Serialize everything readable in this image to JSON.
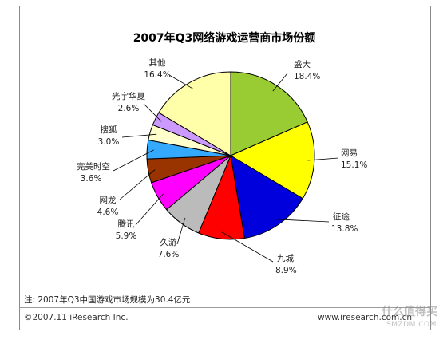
{
  "chart_data": {
    "type": "pie",
    "title": "2007年Q3网络游戏运营商市场份额",
    "slices": [
      {
        "name": "盛大",
        "value": 18.4,
        "label": "18.4%",
        "color": "#99cc33"
      },
      {
        "name": "网易",
        "value": 15.1,
        "label": "15.1%",
        "color": "#ffff00"
      },
      {
        "name": "征途",
        "value": 13.8,
        "label": "13.8%",
        "color": "#0000dd"
      },
      {
        "name": "九城",
        "value": 8.9,
        "label": "8.9%",
        "color": "#ff0000"
      },
      {
        "name": "久游",
        "value": 7.6,
        "label": "7.6%",
        "color": "#bbbbbb"
      },
      {
        "name": "腾讯",
        "value": 5.9,
        "label": "5.9%",
        "color": "#ff00ff"
      },
      {
        "name": "网龙",
        "value": 4.6,
        "label": "4.6%",
        "color": "#993300"
      },
      {
        "name": "完美时空",
        "value": 3.6,
        "label": "3.6%",
        "color": "#33aaff"
      },
      {
        "name": "搜狐",
        "value": 3.0,
        "label": "3.0%",
        "color": "#ffffcc"
      },
      {
        "name": "光宇华夏",
        "value": 2.6,
        "label": "2.6%",
        "color": "#cc99ff"
      },
      {
        "name": "其他",
        "value": 16.4,
        "label": "16.4%",
        "color": "#ffffaa"
      }
    ]
  },
  "footer": {
    "note": "注: 2007年Q3中国游戏市场规模为30.4亿元",
    "copyright": "©2007.11 iResearch Inc.",
    "url": "www.iresearch.com.cn"
  },
  "watermark": {
    "main": "什么值得买",
    "sub": "SMZDM.COM"
  }
}
